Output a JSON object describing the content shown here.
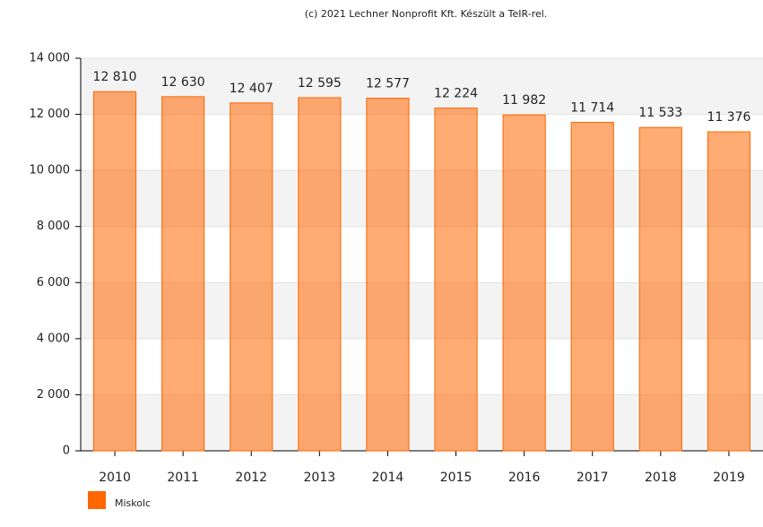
{
  "chart_data": {
    "type": "bar",
    "title": "(c) 2021 Lechner Nonprofit Kft. Készült a TeIR-rel.",
    "categories": [
      "2010",
      "2011",
      "2012",
      "2013",
      "2014",
      "2015",
      "2016",
      "2017",
      "2018",
      "2019"
    ],
    "series": [
      {
        "name": "Miskolc",
        "color": "#ff6600",
        "values": [
          12810,
          12630,
          12407,
          12595,
          12577,
          12224,
          11982,
          11714,
          11533,
          11376
        ],
        "value_labels": [
          "12 810",
          "12 630",
          "12 407",
          "12 595",
          "12 577",
          "12 224",
          "11 982",
          "11 714",
          "11 533",
          "11 376"
        ]
      }
    ],
    "ylim": [
      0,
      14000
    ],
    "yticks": [
      {
        "value": 0,
        "label": "0"
      },
      {
        "value": 2000,
        "label": "2 000"
      },
      {
        "value": 4000,
        "label": "4 000"
      },
      {
        "value": 6000,
        "label": "6 000"
      },
      {
        "value": 8000,
        "label": "8 000"
      },
      {
        "value": 10000,
        "label": "10 000"
      },
      {
        "value": 12000,
        "label": "12 000"
      },
      {
        "value": 14000,
        "label": "14 000"
      }
    ],
    "grid": true,
    "legend": "bottom-left"
  }
}
